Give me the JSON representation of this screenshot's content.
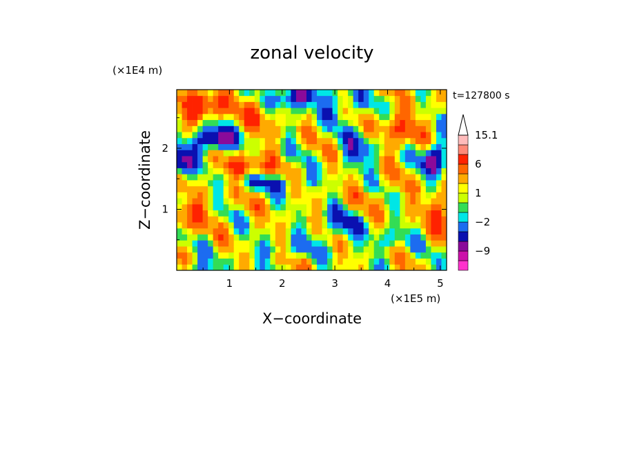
{
  "title": "zonal velocity",
  "time_label": "t=127800 s",
  "chart_data": {
    "type": "heatmap",
    "title": "zonal velocity",
    "xlabel": "X−coordinate",
    "ylabel": "Z−coordinate",
    "x_scale_label": "(×1E5 m)",
    "y_scale_label": "(×1E4 m)",
    "xlim": [
      0,
      5.12
    ],
    "ylim": [
      0,
      2.96
    ],
    "x_ticks": [
      "1",
      "2",
      "3",
      "4",
      "5"
    ],
    "y_ticks": [
      "1",
      "2"
    ],
    "x_tick_values": [
      1,
      2,
      3,
      4,
      5
    ],
    "y_tick_values": [
      1,
      2
    ],
    "colorbar": {
      "labels": [
        "15.1",
        "6",
        "1",
        "−2",
        "−9"
      ],
      "label_values": [
        15.1,
        6,
        1,
        -2,
        -9
      ],
      "colors": [
        "#ff33cc",
        "#cc11aa",
        "#8a0a9a",
        "#0a10b0",
        "#1c6cf0",
        "#00e6e6",
        "#33dd55",
        "#ccff00",
        "#ffff00",
        "#ffaa00",
        "#ff6600",
        "#ff2200",
        "#ff8877",
        "#ffbbbb",
        "#ffffff"
      ],
      "level_bounds": [
        -15,
        -12,
        -9,
        -6,
        -4,
        -2,
        -1,
        0,
        1,
        2,
        4,
        6,
        9,
        12,
        15.1,
        20
      ]
    },
    "field": {
      "nx": 52,
      "nz": 30,
      "components": [
        {
          "kind": "base",
          "value": 1.2
        },
        {
          "kind": "bump",
          "x": 0.5,
          "z": 2.7,
          "sx": 0.45,
          "sz": 0.25,
          "a": 6.5
        },
        {
          "kind": "bump",
          "x": 1.6,
          "z": 2.6,
          "sx": 0.35,
          "sz": 0.3,
          "a": 3.5
        },
        {
          "kind": "bump",
          "x": 0.7,
          "z": 2.15,
          "sx": 0.4,
          "sz": 0.2,
          "a": -10
        },
        {
          "kind": "bump",
          "x": 0.05,
          "z": 1.75,
          "sx": 0.25,
          "sz": 0.25,
          "a": -8
        },
        {
          "kind": "bump",
          "x": 2.2,
          "z": 2.85,
          "sx": 0.4,
          "sz": 0.2,
          "a": -9
        },
        {
          "kind": "bump",
          "x": 3.1,
          "z": 2.7,
          "sx": 0.45,
          "sz": 0.25,
          "a": -4
        },
        {
          "kind": "bump",
          "x": 3.5,
          "z": 2.0,
          "sx": 0.35,
          "sz": 0.3,
          "a": -5
        },
        {
          "kind": "bump",
          "x": 4.9,
          "z": 1.85,
          "sx": 0.25,
          "sz": 0.25,
          "a": -9
        },
        {
          "kind": "bump",
          "x": 4.2,
          "z": 2.3,
          "sx": 0.4,
          "sz": 0.3,
          "a": 5
        },
        {
          "kind": "bump",
          "x": 1.3,
          "z": 1.7,
          "sx": 0.5,
          "sz": 0.2,
          "a": 5
        },
        {
          "kind": "bump",
          "x": 0.2,
          "z": 0.9,
          "sx": 0.35,
          "sz": 0.25,
          "a": 5
        },
        {
          "kind": "bump",
          "x": 5.0,
          "z": 0.95,
          "sx": 0.25,
          "sz": 0.3,
          "a": 5
        },
        {
          "kind": "bump",
          "x": 1.8,
          "z": 1.45,
          "sx": 0.8,
          "sz": 0.12,
          "a": -4.5
        },
        {
          "kind": "bump",
          "x": 3.1,
          "z": 0.75,
          "sx": 0.45,
          "sz": 0.25,
          "a": -4.5
        },
        {
          "kind": "bump",
          "x": 4.0,
          "z": 0.5,
          "sx": 0.35,
          "sz": 0.2,
          "a": -3
        },
        {
          "kind": "bump",
          "x": 2.0,
          "z": 0.35,
          "sx": 0.6,
          "sz": 0.15,
          "a": -3
        },
        {
          "kind": "bump",
          "x": 0.3,
          "z": 0.05,
          "sx": 0.4,
          "sz": 0.12,
          "a": -4
        },
        {
          "kind": "bump",
          "x": 3.8,
          "z": 1.2,
          "sx": 0.7,
          "sz": 0.3,
          "a": 1.0
        },
        {
          "kind": "wave",
          "a": 2.5,
          "kx": 6.0,
          "kz": 5.0
        },
        {
          "kind": "wave",
          "a": 1.5,
          "kx": 11.0,
          "kz": -3.0
        },
        {
          "kind": "wave",
          "a": 1.2,
          "kx": 3.0,
          "kz": 9.0
        }
      ]
    }
  }
}
